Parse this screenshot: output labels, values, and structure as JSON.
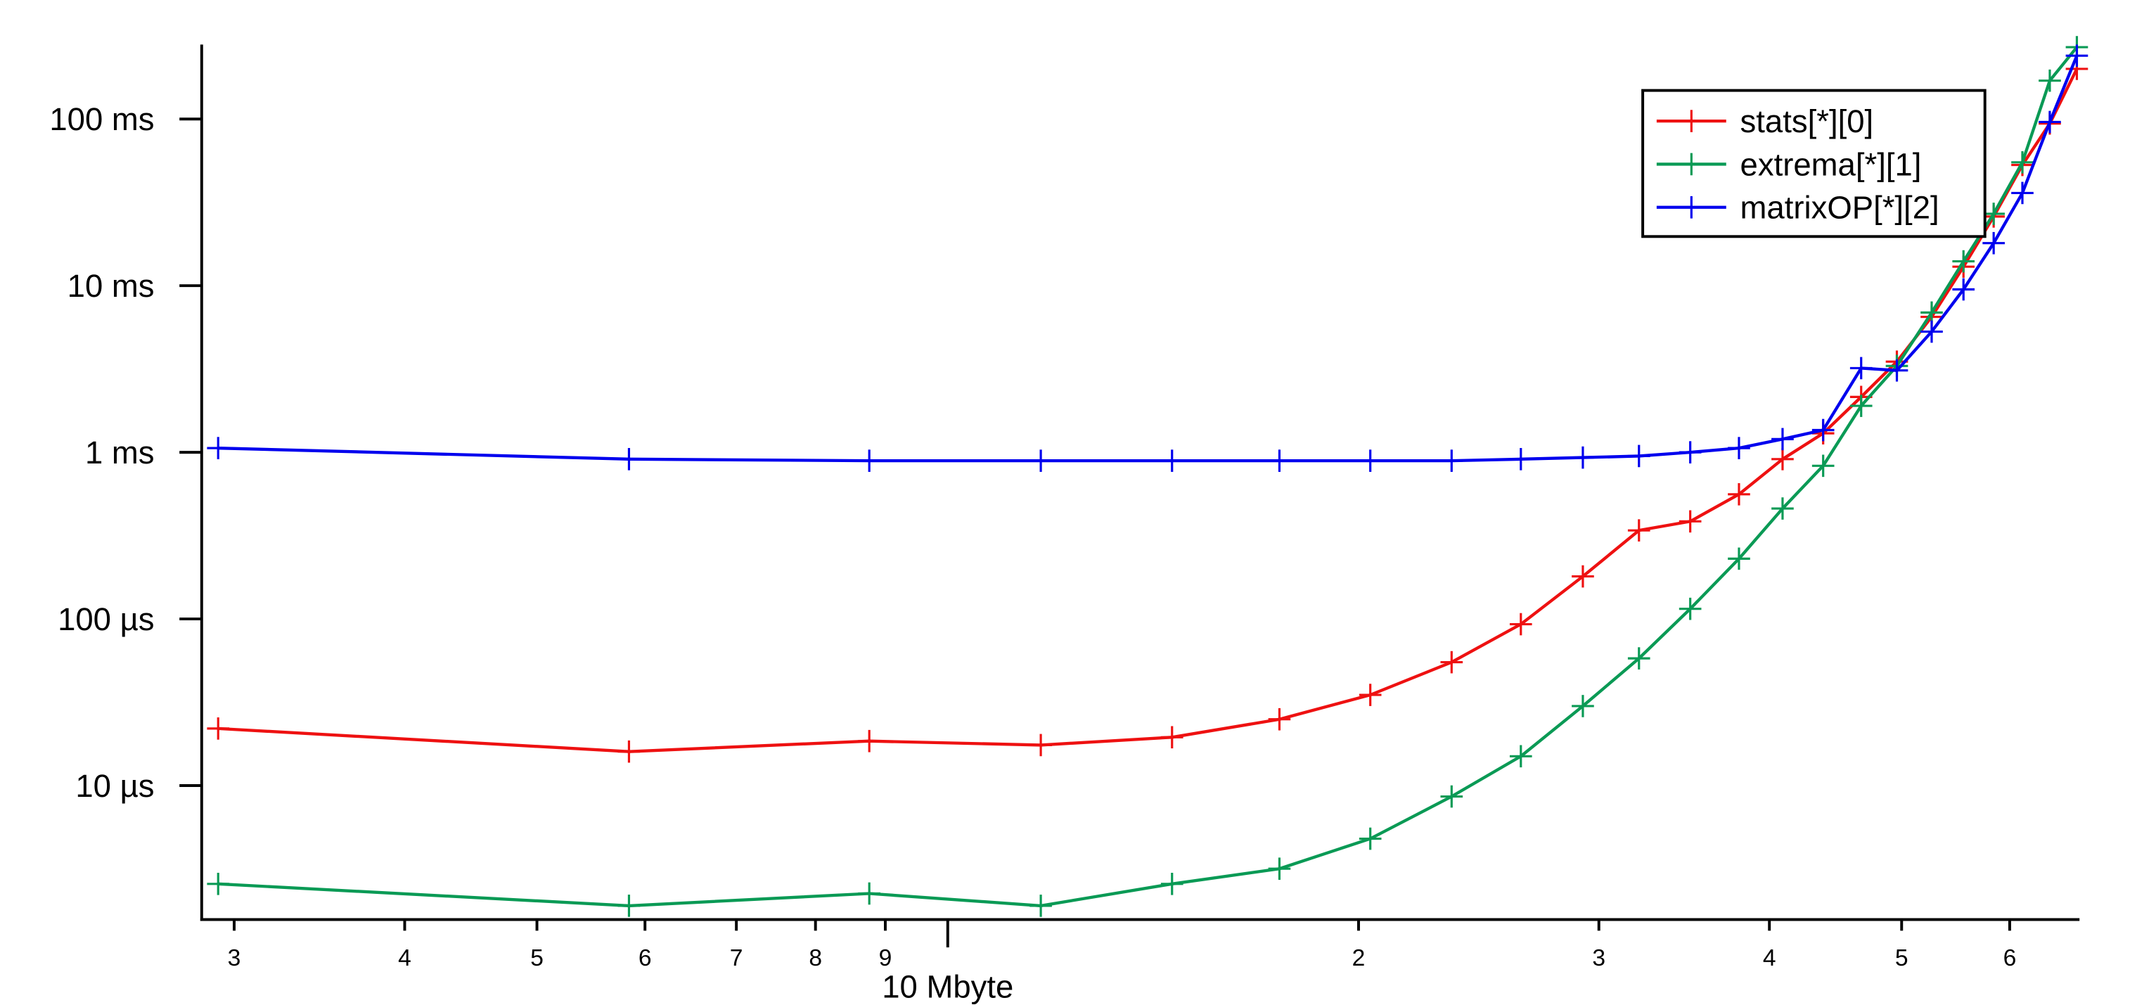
{
  "chart_data": {
    "type": "line",
    "xscale": "log",
    "yscale": "log",
    "xlim": [
      2.84,
      67.5
    ],
    "ylim": [
      1.57e-06,
      0.28
    ],
    "xticks": [
      3,
      4,
      5,
      6,
      7,
      8,
      9,
      {
        "value": 10,
        "label": "10 Mbyte"
      },
      {
        "value": 20,
        "label": "2"
      },
      {
        "value": 30,
        "label": "3"
      },
      {
        "value": 40,
        "label": "4"
      },
      {
        "value": 50,
        "label": "5"
      },
      {
        "value": 60,
        "label": "6"
      }
    ],
    "yticks": [
      {
        "value": 0.1,
        "label": "100 ms"
      },
      {
        "value": 0.01,
        "label": "10 ms"
      },
      {
        "value": 0.001,
        "label": "1 ms"
      },
      {
        "value": 0.0001,
        "label": "100 µs"
      },
      {
        "value": 1e-05,
        "label": "10 µs"
      }
    ],
    "legend": "top-right",
    "x": [
      2.92,
      5.84,
      8.76,
      11.7,
      14.6,
      17.5,
      20.4,
      23.4,
      26.3,
      29.2,
      32.1,
      35.0,
      38.0,
      40.9,
      43.8,
      46.7,
      49.6,
      52.6,
      55.5,
      58.4,
      61.3,
      64.2,
      67.2
    ],
    "series": [
      {
        "name": "stats[*][0]",
        "color": "#ee1111",
        "values": [
          2.2e-05,
          1.6e-05,
          1.85e-05,
          1.75e-05,
          1.95e-05,
          2.5e-05,
          3.5e-05,
          5.5e-05,
          9.3e-05,
          0.00018,
          0.00034,
          0.000385,
          0.00056,
          0.00091,
          0.0013,
          0.00215,
          0.0035,
          0.0065,
          0.013,
          0.026,
          0.053,
          0.094,
          0.2
        ]
      },
      {
        "name": "extrema[*][1]",
        "color": "#0a9a55",
        "values": [
          2.57e-06,
          1.9e-06,
          2.25e-06,
          1.9e-06,
          2.57e-06,
          3.17e-06,
          4.8e-06,
          8.6e-06,
          1.5e-05,
          3e-05,
          5.8e-05,
          0.000115,
          0.00023,
          0.00046,
          0.00083,
          0.0019,
          0.0033,
          0.0069,
          0.014,
          0.027,
          0.055,
          0.17,
          0.27
        ]
      },
      {
        "name": "matrixOP[*][2]",
        "color": "#0000ee",
        "values": [
          0.00106,
          0.00091,
          0.00089,
          0.00089,
          0.00089,
          0.00089,
          0.00089,
          0.00089,
          0.00091,
          0.00093,
          0.00095,
          0.001,
          0.00106,
          0.0012,
          0.00136,
          0.0032,
          0.0031,
          0.0053,
          0.0095,
          0.018,
          0.036,
          0.096,
          0.24
        ]
      }
    ]
  }
}
